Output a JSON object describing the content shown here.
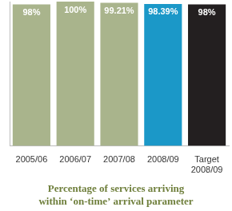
{
  "chart_data": {
    "type": "bar",
    "title": [
      "Percentage of services arriving",
      "within ‘on-time’ arrival parameter"
    ],
    "categories": [
      "2005/06",
      "2006/07",
      "2007/08",
      "2008/09",
      "Target 2008/09"
    ],
    "values": [
      98,
      100,
      99.21,
      98.39,
      98
    ],
    "value_labels": [
      "98%",
      "100%",
      "99.21%",
      "98.39%",
      "98%"
    ],
    "colors": [
      "#a9b48c",
      "#a9b48c",
      "#a9b48c",
      "#1b98c8",
      "#231f20"
    ],
    "ylim": [
      0,
      100
    ],
    "grid": false,
    "data_labels": true,
    "tick_labels": "x"
  }
}
